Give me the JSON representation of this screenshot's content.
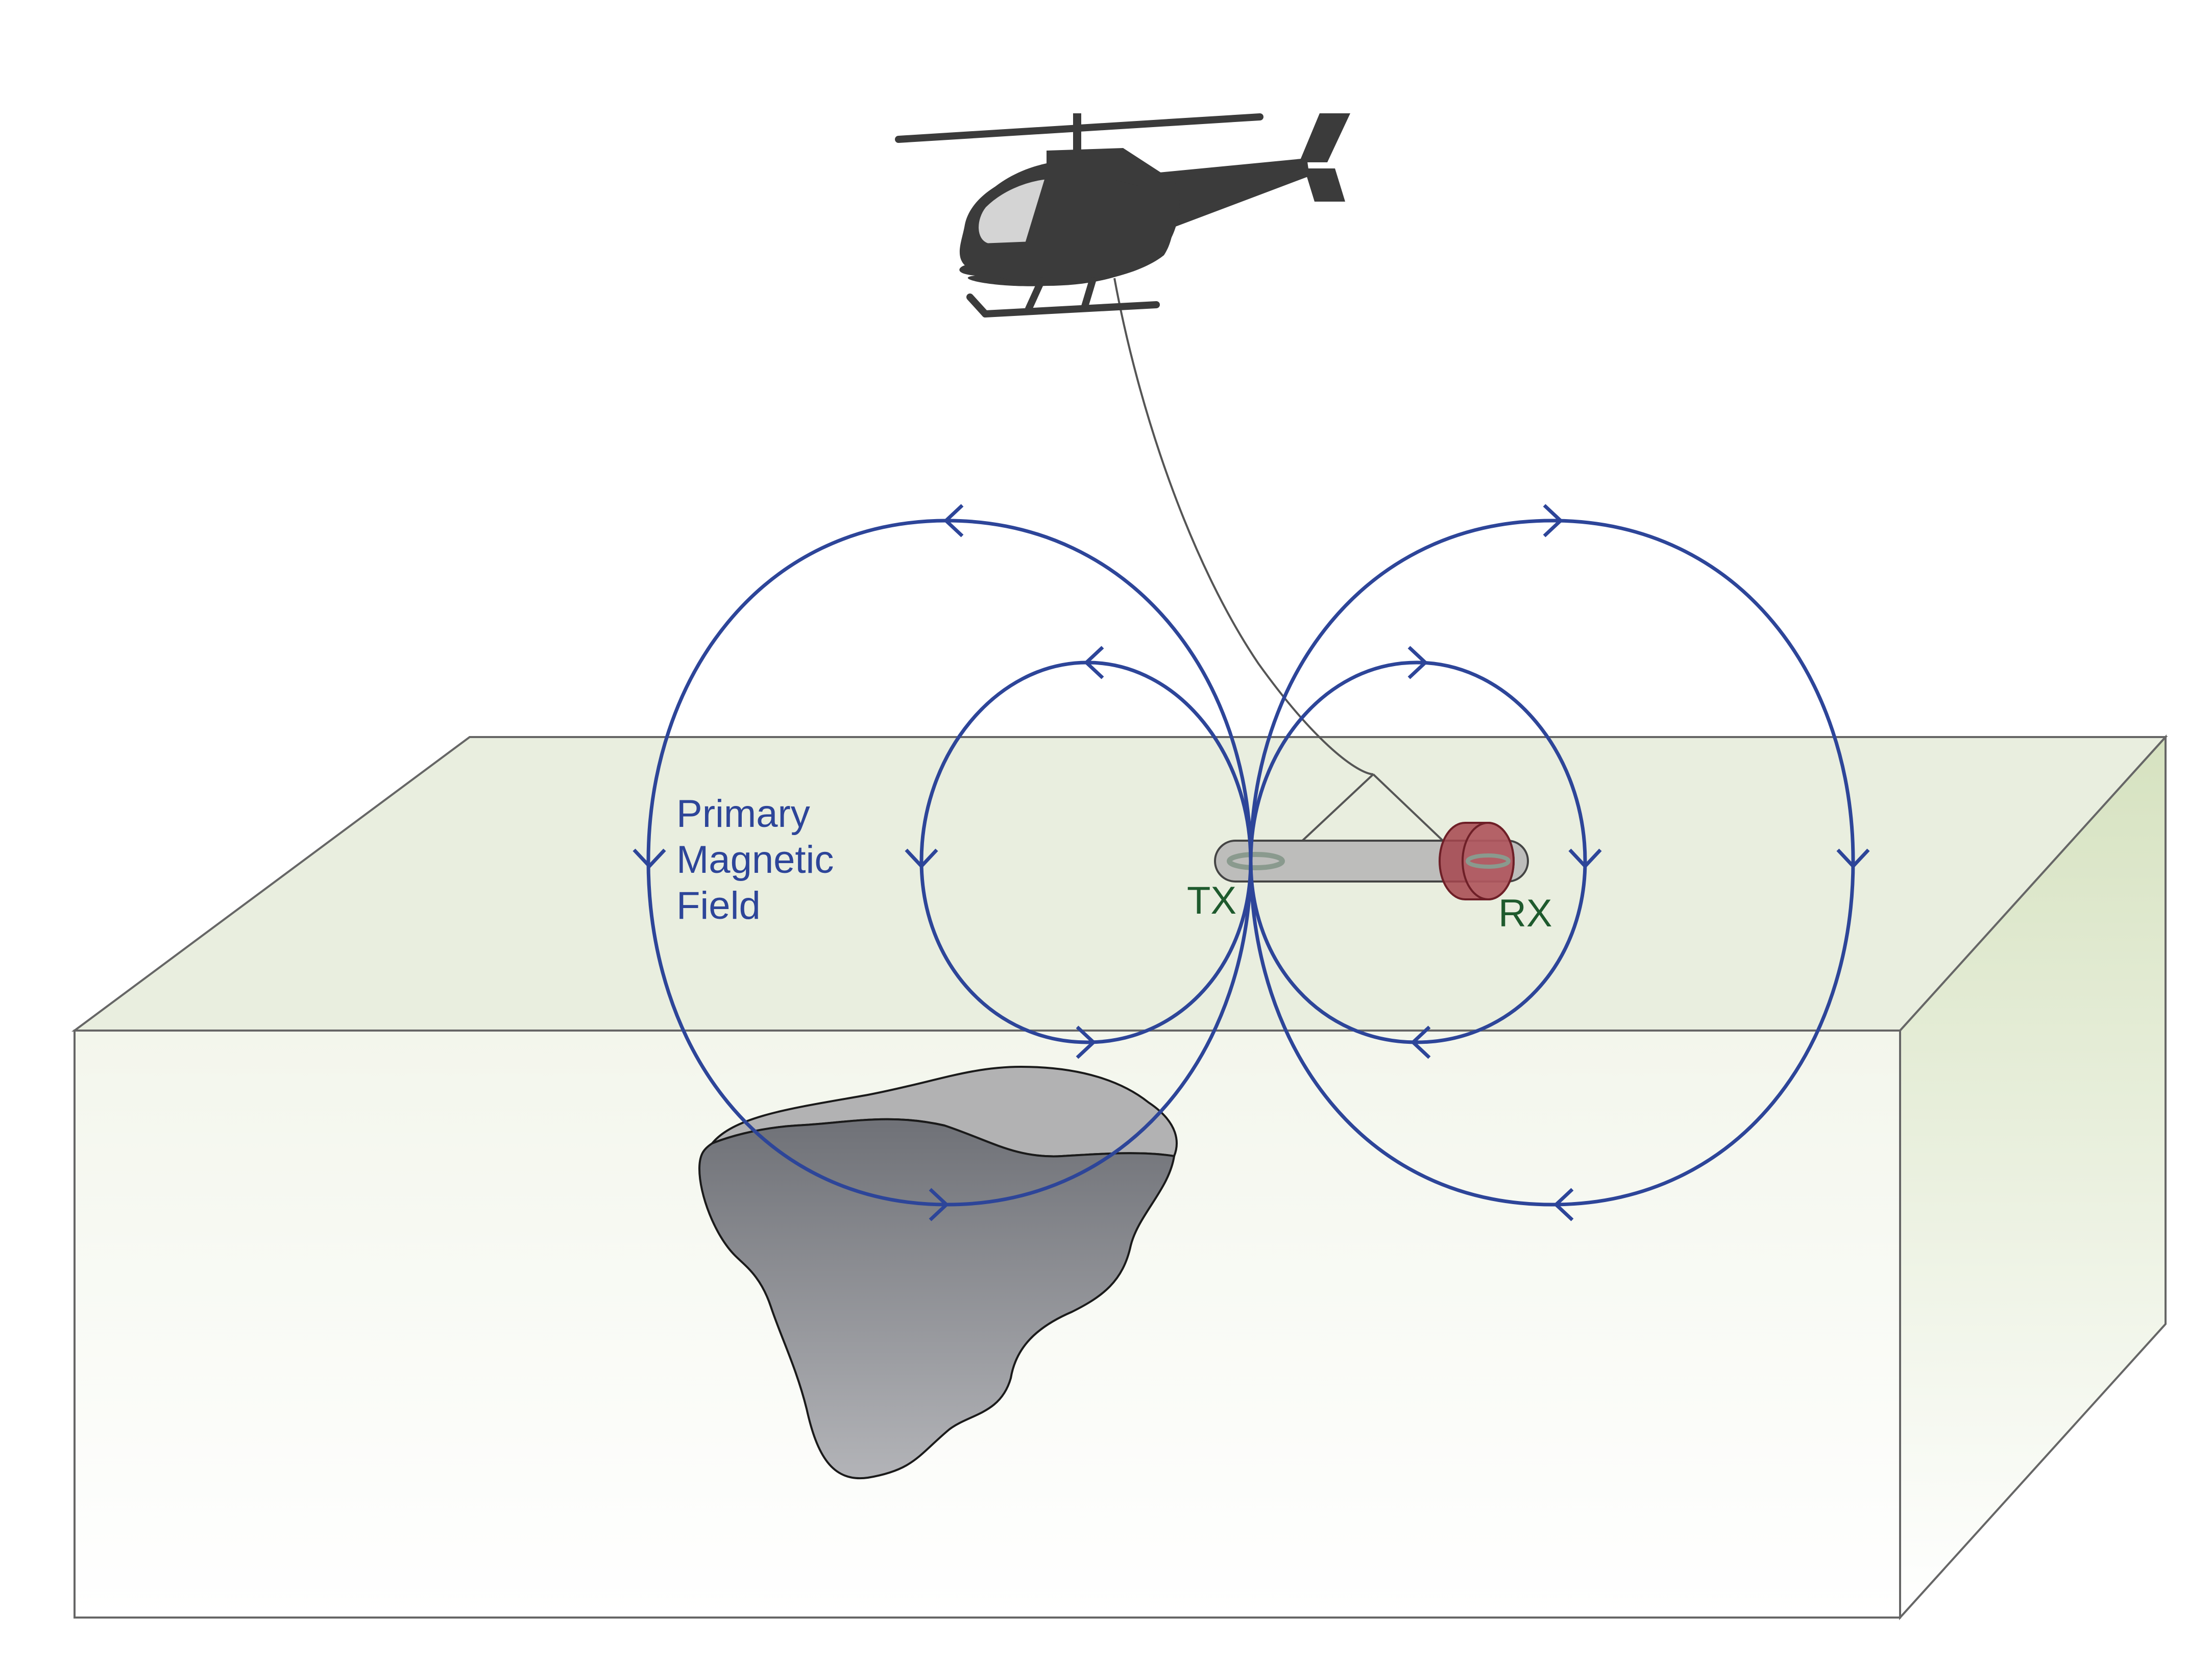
{
  "labels": {
    "field_line1": "Primary",
    "field_line2": "Magnetic",
    "field_line3": "Field",
    "transmitter": "TX",
    "receiver": "RX"
  },
  "colors": {
    "field_lines": "#2d4599",
    "helicopter": "#3b3b3b",
    "cockpit": "#d4d4d4",
    "ground_top": "#e9eedf",
    "ground_side": "#dbe5c8",
    "ore_body": "#7c7e84",
    "sensor_bird": "#bdbdbb",
    "receiver_coil": "#9c4a52",
    "label_green": "#1e5a2d"
  },
  "icons": {
    "aircraft": "helicopter-icon"
  }
}
